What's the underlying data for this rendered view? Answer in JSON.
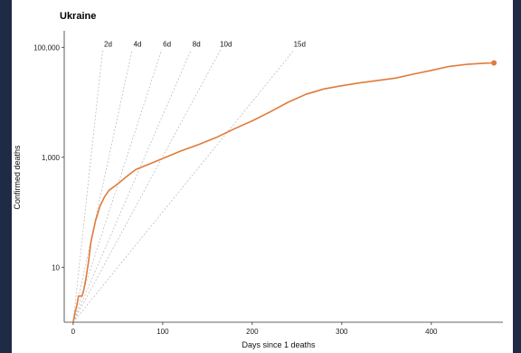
{
  "chart_data": {
    "type": "line",
    "title": "Ukraine",
    "xlabel": "Days since 1 deaths",
    "ylabel": "Confirmed deaths",
    "y_scale": "log",
    "xlim": [
      -10,
      480
    ],
    "ylim": [
      1,
      200000
    ],
    "x_ticks": [
      0,
      100,
      200,
      300,
      400
    ],
    "x_tick_labels": [
      "0",
      "100",
      "200",
      "300",
      "400"
    ],
    "y_ticks": [
      10,
      1000,
      100000
    ],
    "y_tick_labels": [
      "10",
      "1,000",
      "100,000"
    ],
    "grid": false,
    "series": [
      {
        "color": "#e07b39",
        "x": [
          0,
          2,
          4,
          6,
          8,
          10,
          12,
          14,
          17,
          20,
          25,
          30,
          35,
          40,
          50,
          60,
          70,
          80,
          100,
          120,
          140,
          160,
          180,
          200,
          220,
          240,
          260,
          280,
          300,
          320,
          340,
          360,
          380,
          400,
          420,
          440,
          460,
          470
        ],
        "y": [
          1,
          1.5,
          2,
          3,
          3,
          3,
          4,
          6,
          12,
          30,
          70,
          130,
          190,
          250,
          330,
          450,
          600,
          700,
          950,
          1300,
          1700,
          2300,
          3300,
          4600,
          6700,
          10000,
          14000,
          17500,
          20000,
          22500,
          25000,
          27500,
          32500,
          38000,
          45000,
          49000,
          51500,
          52000
        ],
        "end_marker": true
      }
    ],
    "reference_lines": [
      {
        "label": "2d",
        "doubling_days": 2
      },
      {
        "label": "4d",
        "doubling_days": 4
      },
      {
        "label": "6d",
        "doubling_days": 6
      },
      {
        "label": "8d",
        "doubling_days": 8
      },
      {
        "label": "10d",
        "doubling_days": 10
      },
      {
        "label": "15d",
        "doubling_days": 15
      }
    ]
  },
  "colors": {
    "line": "#e07b39",
    "reference": "#b5b5b5",
    "axis": "#333333",
    "frame": "#1f2a44"
  }
}
